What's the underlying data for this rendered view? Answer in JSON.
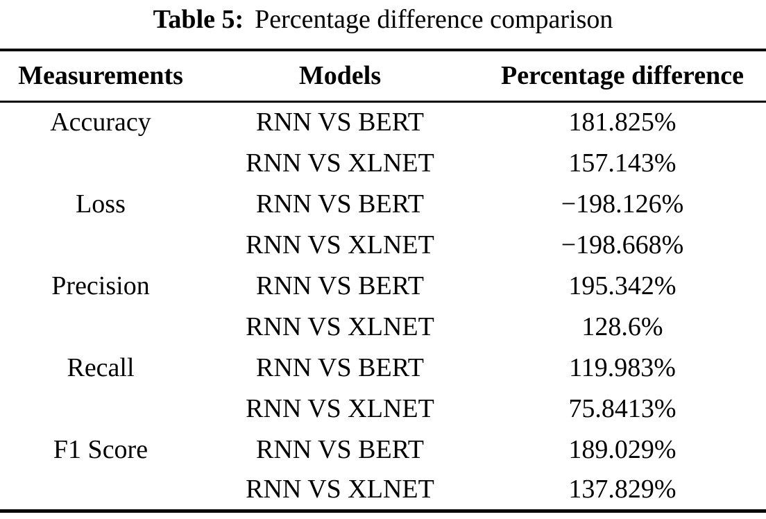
{
  "caption": {
    "label": "Table 5:",
    "text": "Percentage difference comparison"
  },
  "table": {
    "columns": {
      "measurements": "Measurements",
      "models": "Models",
      "percentage": "Percentage difference"
    },
    "rows": [
      {
        "measurement": "Accuracy",
        "model": "RNN VS BERT",
        "value": "181.825%"
      },
      {
        "measurement": "",
        "model": "RNN VS XLNET",
        "value": "157.143%"
      },
      {
        "measurement": "Loss",
        "model": "RNN VS BERT",
        "value": "−198.126%"
      },
      {
        "measurement": "",
        "model": "RNN VS XLNET",
        "value": "−198.668%"
      },
      {
        "measurement": "Precision",
        "model": "RNN VS BERT",
        "value": "195.342%"
      },
      {
        "measurement": "",
        "model": "RNN VS XLNET",
        "value": "128.6%"
      },
      {
        "measurement": "Recall",
        "model": "RNN VS BERT",
        "value": "119.983%"
      },
      {
        "measurement": "",
        "model": "RNN VS XLNET",
        "value": "75.8413%"
      },
      {
        "measurement": "F1 Score",
        "model": "RNN VS BERT",
        "value": "189.029%"
      },
      {
        "measurement": "",
        "model": "RNN VS XLNET",
        "value": "137.829%"
      }
    ],
    "text_color": "#000000",
    "background_color": "#ffffff"
  }
}
